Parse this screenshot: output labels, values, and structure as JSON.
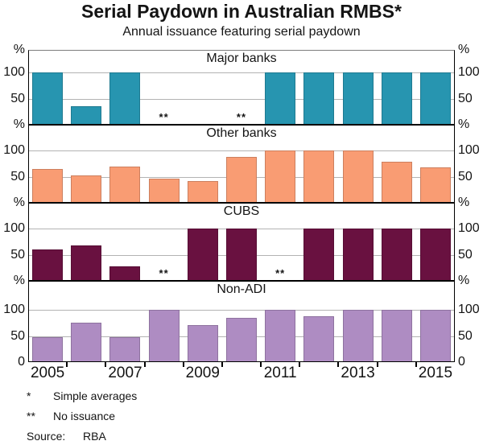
{
  "chart_data": {
    "type": "bar",
    "title": "Serial Paydown in Australian RMBS*",
    "subtitle": "Annual issuance featuring serial paydown",
    "x": [
      2005,
      2006,
      2007,
      2008,
      2009,
      2010,
      2011,
      2012,
      2013,
      2014,
      2015
    ],
    "xticks": [
      2005,
      2007,
      2009,
      2011,
      2013,
      2015
    ],
    "ylim": [
      0,
      100
    ],
    "yticks": [
      0,
      50,
      100
    ],
    "y_unit": "%",
    "grid": "horizontal",
    "layout": "4 stacked panels sharing x axis",
    "no_issuance_marker": "**",
    "panels": [
      {
        "name": "Major banks",
        "color": "#2795b0",
        "values": [
          100,
          36,
          100,
          null,
          0,
          null,
          100,
          100,
          100,
          100,
          100
        ],
        "no_issuance_years": [
          2008,
          2010
        ]
      },
      {
        "name": "Other banks",
        "color": "#f99c73",
        "values": [
          65,
          53,
          70,
          46,
          42,
          87,
          100,
          100,
          100,
          79,
          67
        ],
        "no_issuance_years": []
      },
      {
        "name": "CUBS",
        "color": "#691140",
        "values": [
          60,
          68,
          27,
          null,
          100,
          100,
          null,
          100,
          100,
          100,
          100
        ],
        "no_issuance_years": [
          2008,
          2011
        ]
      },
      {
        "name": "Non-ADI",
        "color": "#ae8cc2",
        "values": [
          47,
          76,
          47,
          100,
          71,
          84,
          100,
          88,
          100,
          100,
          100
        ],
        "no_issuance_years": []
      }
    ]
  },
  "axis_labels": {
    "percent": "%",
    "hundred": "100",
    "fifty": "50",
    "zero": "0"
  },
  "footnotes": [
    {
      "marker": "*",
      "text": "Simple averages"
    },
    {
      "marker": "**",
      "text": "No issuance"
    },
    {
      "marker": "Source:",
      "text": "RBA"
    }
  ],
  "colors": {
    "gridline": "#b3b3b3",
    "frame": "#000000",
    "text": "#141414"
  }
}
